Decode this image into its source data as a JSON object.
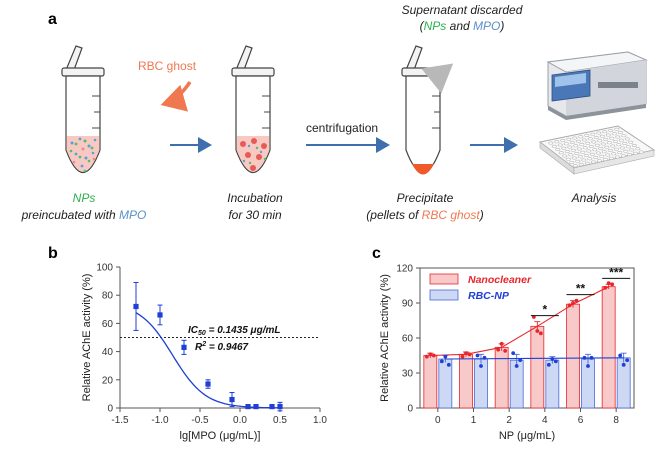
{
  "panels": {
    "a": {
      "label": "a",
      "rbc_ghost": "RBC ghost",
      "centrifugation": "centrifugation",
      "supernatant_line1": "Supernatant discarded",
      "supernatant_open": "(",
      "supernatant_nps": "NPs",
      "supernatant_and": " and ",
      "supernatant_mpo": "MPO",
      "supernatant_close": ")",
      "step1_nps": "NPs",
      "step1_pre": "preincubated with ",
      "step1_mpo": "MPO",
      "step2_line1": "Incubation",
      "step2_line2": "for 30 min",
      "step3_line1": "Precipitate",
      "step3_pre": "(pellets of ",
      "step3_rbc": "RBC ghost",
      "step3_close": ")",
      "step4": "Analysis"
    },
    "b": {
      "label": "b"
    },
    "c": {
      "label": "c"
    }
  },
  "colors": {
    "green": "#2bb24c",
    "blue_text": "#5a8fc8",
    "orange": "#f07850",
    "arrow_blue": "#3f6fae",
    "plot_blue": "#1f3fd6",
    "nano_red": "#e8262b"
  },
  "chart_data": [
    {
      "type": "scatter",
      "panel": "b",
      "xlabel": "lg[MPO (μg/mL)]",
      "ylabel": "Relative AChE activity (%)",
      "xlim": [
        -1.5,
        1.0
      ],
      "ylim": [
        0,
        100
      ],
      "xticks": [
        -1.5,
        -1.0,
        -0.5,
        0.0,
        0.5,
        1.0
      ],
      "xtick_labels": [
        "-1.5",
        "-1.0",
        "-0.5",
        "0.0",
        "0.5",
        "1.0"
      ],
      "yticks": [
        0,
        20,
        40,
        60,
        80,
        100
      ],
      "ytick_labels": [
        "0",
        "20",
        "40",
        "60",
        "80",
        "100"
      ],
      "points": [
        {
          "x": -1.3,
          "y": 72,
          "err": 17
        },
        {
          "x": -1.0,
          "y": 66,
          "err": 7
        },
        {
          "x": -0.7,
          "y": 43,
          "err": 5
        },
        {
          "x": -0.4,
          "y": 17,
          "err": 3
        },
        {
          "x": -0.1,
          "y": 6,
          "err": 5
        },
        {
          "x": 0.1,
          "y": 1,
          "err": 1
        },
        {
          "x": 0.2,
          "y": 1,
          "err": 1
        },
        {
          "x": 0.4,
          "y": 1,
          "err": 1
        },
        {
          "x": 0.5,
          "y": 1,
          "err": 3
        }
      ],
      "fit": {
        "top": 75,
        "ic50_log": -0.843,
        "hill": 2.1
      },
      "reference_line": 50,
      "annotation_ic50_main": "IC",
      "annotation_ic50_sub": "50",
      "annotation_ic50_rest": " = 0.1435 μg/mL",
      "annotation_r2_main": "R",
      "annotation_r2_sup": "2",
      "annotation_r2_rest": " = 0.9467"
    },
    {
      "type": "bar",
      "panel": "c",
      "xlabel": "NP (μg/mL)",
      "ylabel": "Relative AChE activity (%)",
      "categories": [
        "0",
        "1",
        "2",
        "4",
        "6",
        "8"
      ],
      "ylim": [
        0,
        120
      ],
      "yticks": [
        0,
        30,
        60,
        90,
        120
      ],
      "ytick_labels": [
        "0",
        "30",
        "60",
        "90",
        "120"
      ],
      "series": [
        {
          "name": "Nanocleaner",
          "values": [
            45,
            46,
            52,
            70,
            89,
            104
          ],
          "errors": [
            2,
            2,
            3,
            4,
            3,
            2
          ],
          "points": [
            [
              44,
              46,
              45
            ],
            [
              44,
              47,
              46
            ],
            [
              50,
              55,
              49
            ],
            [
              78,
              66,
              64
            ],
            [
              88,
              90,
              92
            ],
            [
              103,
              107,
              106
            ]
          ],
          "fit": "line"
        },
        {
          "name": "RBC-NP",
          "values": [
            42,
            42,
            41,
            41,
            42,
            43
          ],
          "errors": [
            3,
            4,
            5,
            3,
            4,
            4
          ],
          "points": [
            [
              40,
              44,
              37
            ],
            [
              45,
              36,
              43
            ],
            [
              47,
              36,
              41
            ],
            [
              37,
              42,
              40
            ],
            [
              43,
              36,
              43
            ],
            [
              45,
              37,
              41
            ]
          ],
          "fit": "line"
        }
      ],
      "significance": [
        {
          "category": "4",
          "label": "*"
        },
        {
          "category": "6",
          "label": "**"
        },
        {
          "category": "8",
          "label": "***"
        }
      ]
    }
  ]
}
